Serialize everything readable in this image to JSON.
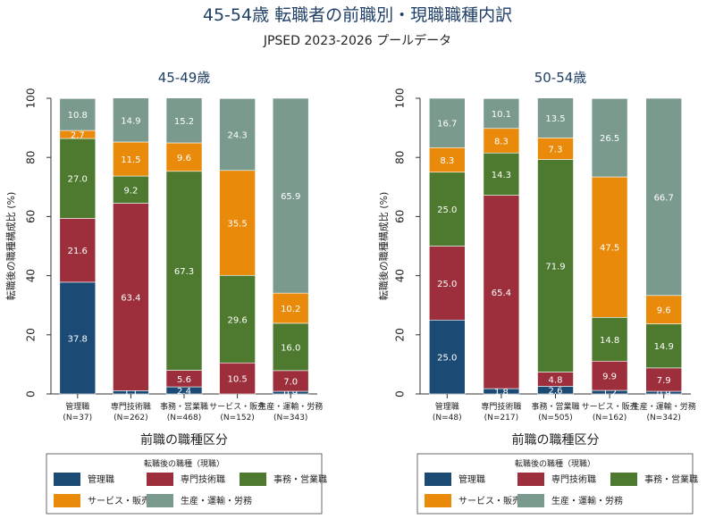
{
  "title": "45-54歳 転職者の前職別・現職職種内訳",
  "subtitle": "JPSED 2023-2026 プールデータ",
  "colors": [
    "#1b4a75",
    "#9c2f3b",
    "#4d7a2e",
    "#e98a0b",
    "#7a9a8e"
  ],
  "chart_data": [
    {
      "type": "bar",
      "stacked": true,
      "title": "45-49歳",
      "xlabel": "前職の職種区分",
      "ylabel": "転職後の職種構成比 (%)",
      "ylim": [
        0,
        100
      ],
      "yticks": [
        0,
        20,
        40,
        60,
        80,
        100
      ],
      "grid": false,
      "categories": [
        "管理職\n(N=37)",
        "専門技術職\n(N=262)",
        "事務・営業職\n(N=468)",
        "サービス・販売\n(N=152)",
        "生産・運輸・労務\n(N=343)"
      ],
      "series": [
        {
          "name": "管理職",
          "values": [
            37.8,
            1.1,
            2.4,
            0.0,
            0.9
          ]
        },
        {
          "name": "専門技術職",
          "values": [
            21.6,
            63.4,
            5.6,
            10.5,
            7.0
          ]
        },
        {
          "name": "事務・営業職",
          "values": [
            27.0,
            9.2,
            67.3,
            29.6,
            16.0
          ]
        },
        {
          "name": "サービス・販売",
          "values": [
            2.7,
            11.5,
            9.6,
            35.5,
            10.2
          ]
        },
        {
          "name": "生産・運輸・労務",
          "values": [
            10.8,
            14.9,
            15.2,
            24.3,
            65.9
          ]
        }
      ]
    },
    {
      "type": "bar",
      "stacked": true,
      "title": "50-54歳",
      "xlabel": "前職の職種区分",
      "ylabel": "転職後の職種構成比 (%)",
      "ylim": [
        0,
        100
      ],
      "yticks": [
        0,
        20,
        40,
        60,
        80,
        100
      ],
      "grid": false,
      "categories": [
        "管理職\n(N=48)",
        "専門技術職\n(N=217)",
        "事務・営業職\n(N=505)",
        "サービス・販売\n(N=162)",
        "生産・運輸・労務\n(N=342)"
      ],
      "series": [
        {
          "name": "管理職",
          "values": [
            25.0,
            1.8,
            2.6,
            1.2,
            0.9
          ]
        },
        {
          "name": "専門技術職",
          "values": [
            25.0,
            65.4,
            4.8,
            9.9,
            7.9
          ]
        },
        {
          "name": "事務・営業職",
          "values": [
            25.0,
            14.3,
            71.9,
            14.8,
            14.9
          ]
        },
        {
          "name": "サービス・販売",
          "values": [
            8.3,
            8.3,
            7.3,
            47.5,
            9.6
          ]
        },
        {
          "name": "生産・運輸・労務",
          "values": [
            16.7,
            10.1,
            13.5,
            26.5,
            66.7
          ]
        }
      ]
    }
  ],
  "legend": {
    "title": "転職後の職種（現職）",
    "items": [
      "管理職",
      "専門技術職",
      "事務・営業職",
      "サービス・販売",
      "生産・運輸・労務"
    ]
  }
}
